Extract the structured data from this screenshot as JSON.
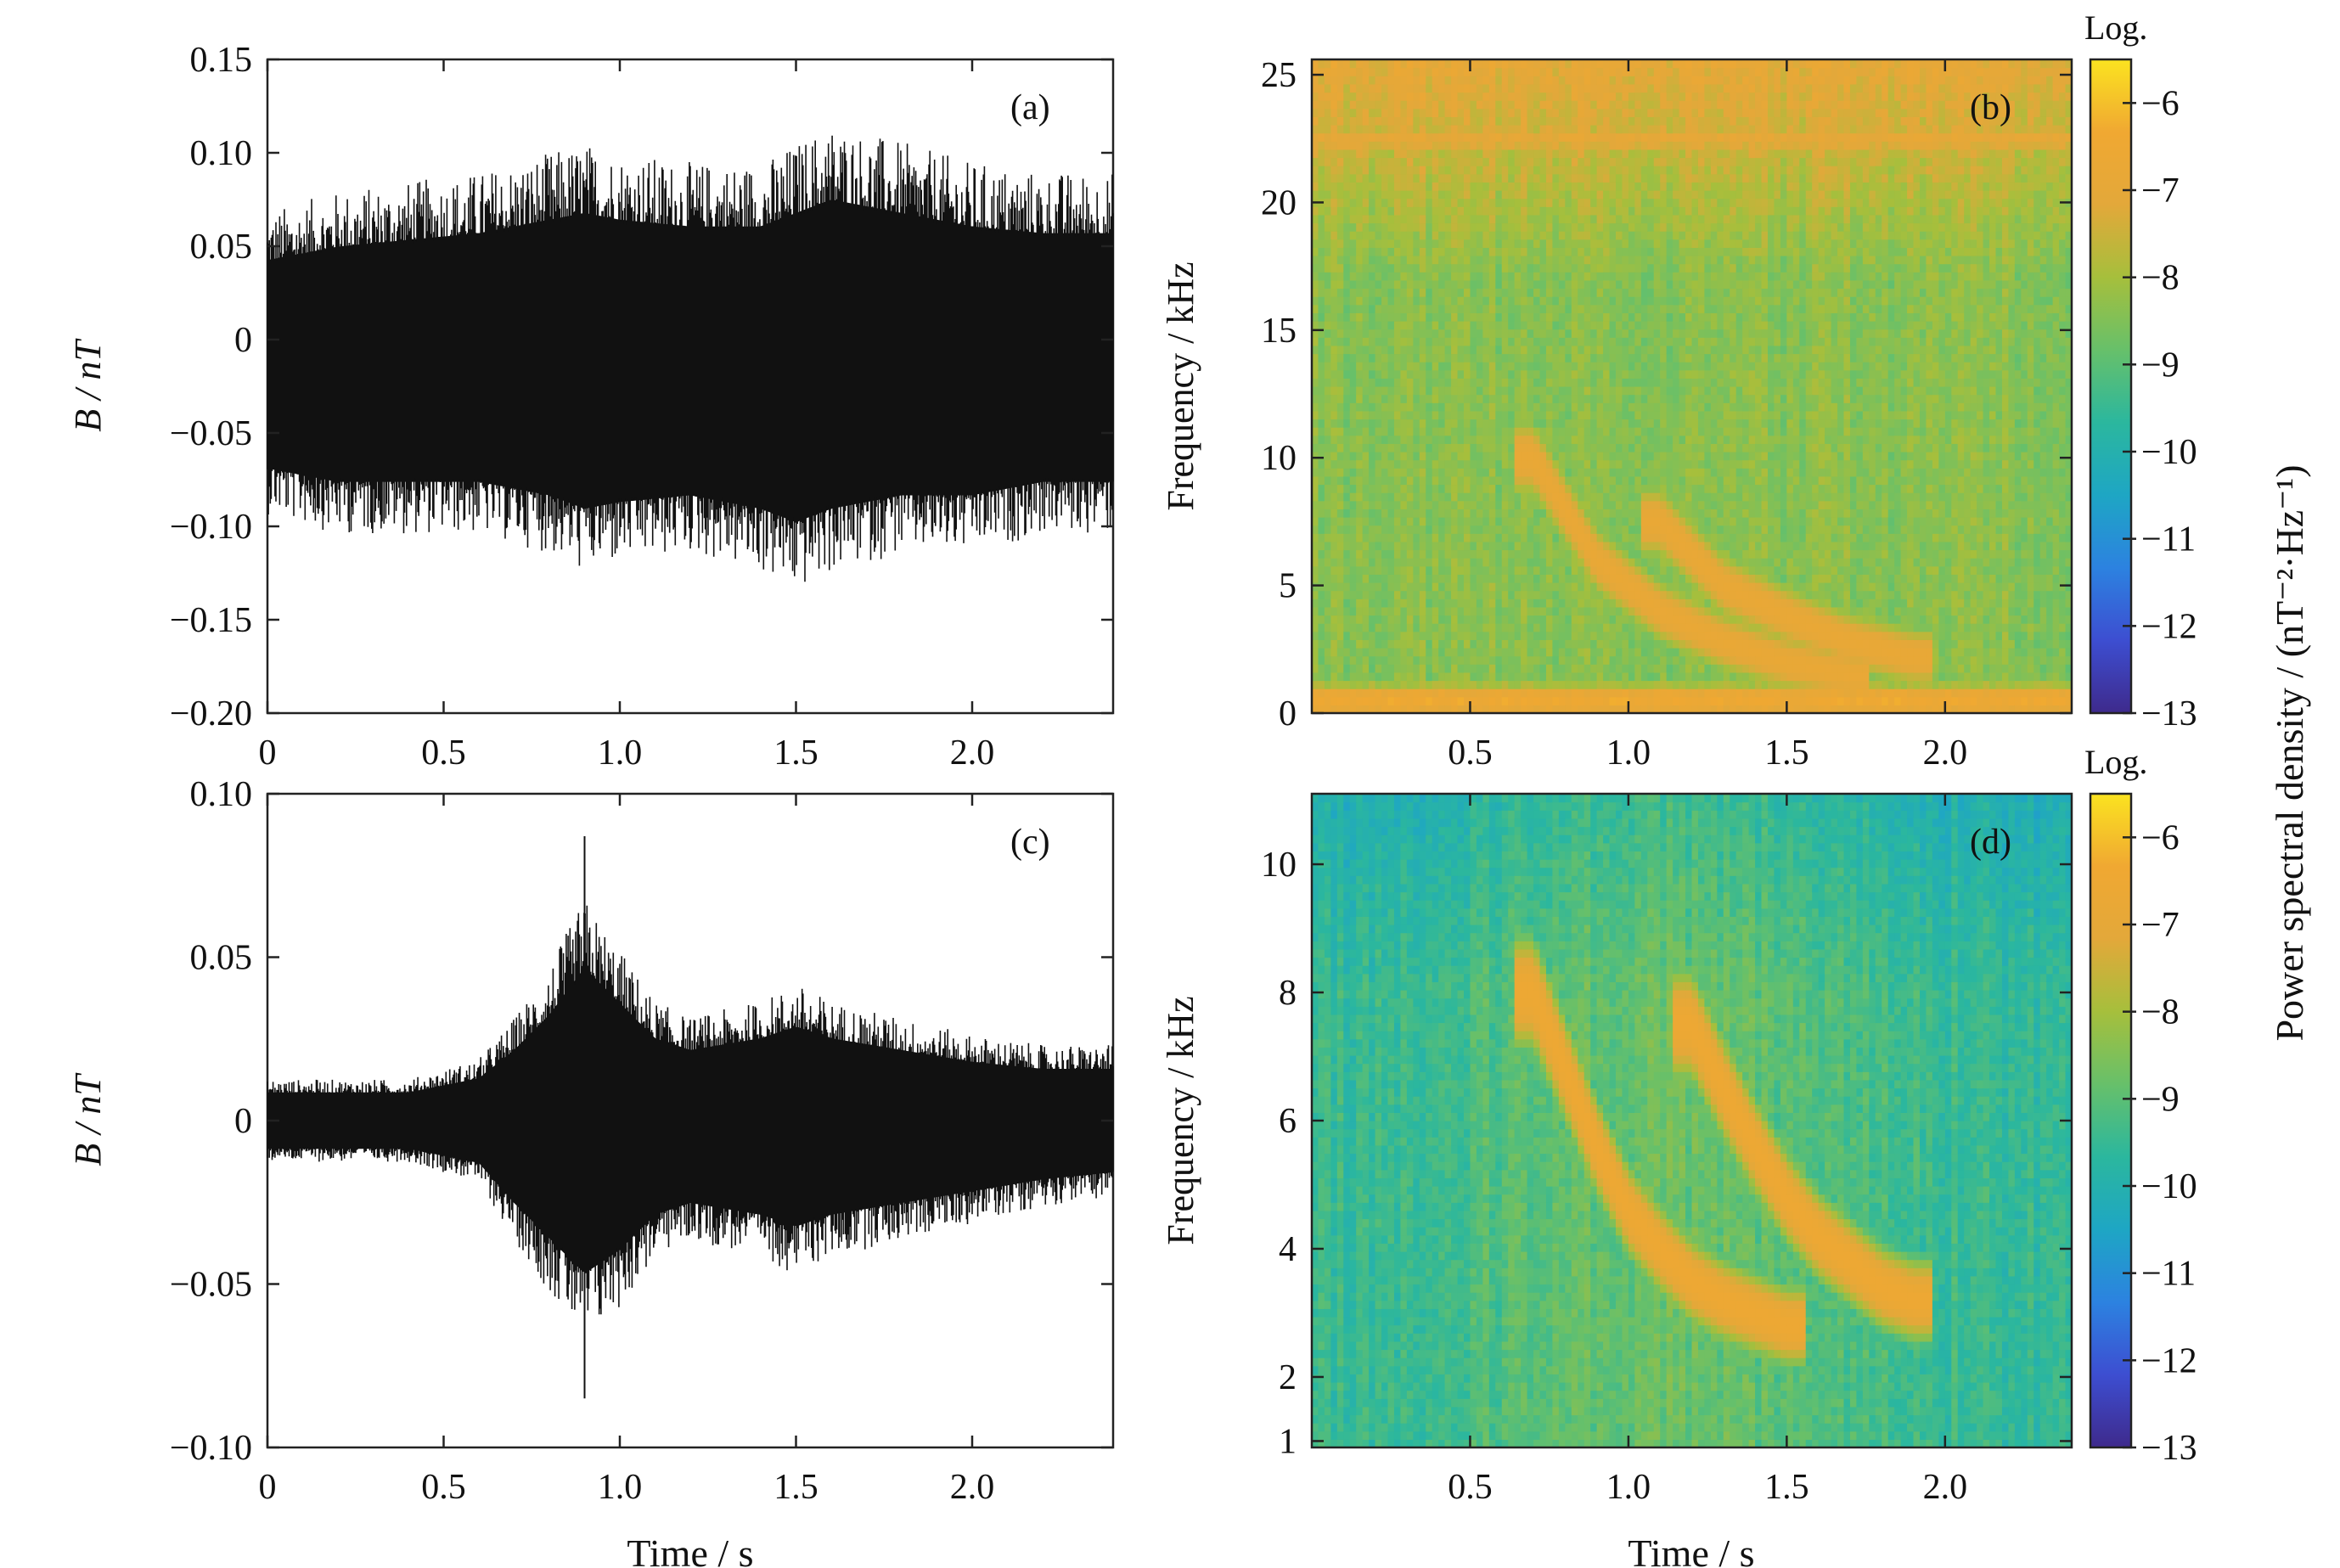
{
  "figure": {
    "colorbar_label": "Power spectral density / (nT⁻²·Hz⁻¹)"
  },
  "colors": {
    "waveform": "#111111",
    "colormap": [
      "#3e2a8c",
      "#3d4ed1",
      "#2c82e0",
      "#1ea6c4",
      "#2bb79e",
      "#67c06a",
      "#a6bf3c",
      "#e3a83a",
      "#f0a832",
      "#fbe320"
    ]
  },
  "chart_data": [
    {
      "type": "line",
      "panel_label": "(a)",
      "xlabel": "Time / s",
      "ylabel": "B / nT",
      "xlim": [
        0,
        2.4
      ],
      "ylim": [
        -0.2,
        0.15
      ],
      "xticks": [
        "0",
        "0.5",
        "1.0",
        "1.5",
        "2.0"
      ],
      "yticks": [
        "0.15",
        "0.10",
        "0.05",
        "0",
        "−0.05",
        "−0.10",
        "−0.15",
        "−0.20"
      ],
      "series": [
        {
          "x": [
            0,
            0.2,
            0.4,
            0.6,
            0.8,
            0.9,
            1.0,
            1.2,
            1.4,
            1.5,
            1.6,
            1.8,
            2.0,
            2.2,
            2.4
          ],
          "upper_envelope": [
            0.065,
            0.075,
            0.08,
            0.085,
            0.095,
            0.1,
            0.095,
            0.09,
            0.09,
            0.1,
            0.11,
            0.1,
            0.09,
            0.085,
            0.085
          ],
          "lower_envelope": [
            -0.09,
            -0.1,
            -0.1,
            -0.1,
            -0.11,
            -0.12,
            -0.115,
            -0.11,
            -0.12,
            -0.13,
            -0.12,
            -0.11,
            -0.11,
            -0.1,
            -0.1
          ],
          "center": -0.015
        }
      ]
    },
    {
      "type": "heatmap",
      "panel_label": "(b)",
      "xlabel": "",
      "ylabel": "Frequency / kHz",
      "xlim": [
        0,
        2.4
      ],
      "ylim": [
        0,
        25.6
      ],
      "xticks": [
        "0.5",
        "1.0",
        "1.5",
        "2.0"
      ],
      "yticks": [
        "25",
        "20",
        "15",
        "10",
        "5",
        "0"
      ],
      "colorbar": {
        "title": "Log.",
        "range": [
          -13,
          -5.5
        ],
        "ticks": [
          "−6",
          "−7",
          "−8",
          "−9",
          "−10",
          "−11",
          "−12",
          "−13"
        ]
      },
      "features": [
        {
          "name": "whistler trace 1",
          "t": [
            0.7,
            0.9,
            1.1,
            1.3,
            1.5,
            1.7
          ],
          "f_khz": [
            10.0,
            6.0,
            4.0,
            2.8,
            2.0,
            1.5
          ],
          "level": -6.8
        },
        {
          "name": "whistler trace 2",
          "t": [
            1.1,
            1.3,
            1.5,
            1.7,
            1.9
          ],
          "f_khz": [
            7.5,
            5.0,
            3.8,
            2.8,
            2.2
          ],
          "level": -6.8
        },
        {
          "name": "low frequency band",
          "t": [
            0,
            2.4
          ],
          "f_khz": [
            0.5,
            0.5
          ],
          "level": -6.5
        },
        {
          "name": "high frequency band",
          "t": [
            0,
            2.4
          ],
          "f_khz": [
            22.5,
            22.5
          ],
          "level": -7.0
        }
      ]
    },
    {
      "type": "line",
      "panel_label": "(c)",
      "xlabel": "Time / s",
      "ylabel": "B / nT",
      "xlim": [
        0,
        2.4
      ],
      "ylim": [
        -0.1,
        0.1
      ],
      "xticks": [
        "0",
        "0.5",
        "1.0",
        "1.5",
        "2.0"
      ],
      "yticks": [
        "0.10",
        "0.05",
        "0",
        "−0.05",
        "−0.10"
      ],
      "series": [
        {
          "x": [
            0,
            0.2,
            0.4,
            0.6,
            0.7,
            0.8,
            0.9,
            1.0,
            1.1,
            1.2,
            1.4,
            1.5,
            1.6,
            1.8,
            2.0,
            2.2,
            2.4
          ],
          "upper_envelope": [
            0.012,
            0.012,
            0.012,
            0.018,
            0.03,
            0.045,
            0.065,
            0.05,
            0.035,
            0.03,
            0.035,
            0.04,
            0.035,
            0.03,
            0.025,
            0.022,
            0.022
          ],
          "lower_envelope": [
            -0.012,
            -0.012,
            -0.012,
            -0.018,
            -0.035,
            -0.05,
            -0.065,
            -0.055,
            -0.04,
            -0.035,
            -0.04,
            -0.045,
            -0.04,
            -0.035,
            -0.03,
            -0.025,
            -0.022
          ],
          "center": 0,
          "spikes": [
            {
              "x": 0.9,
              "y": 0.087
            },
            {
              "x": 0.9,
              "y": -0.085
            }
          ]
        }
      ]
    },
    {
      "type": "heatmap",
      "panel_label": "(d)",
      "xlabel": "Time / s",
      "ylabel": "Frequency / kHz",
      "xlim": [
        0,
        2.4
      ],
      "ylim": [
        0.9,
        11.1
      ],
      "xticks": [
        "0.5",
        "1.0",
        "1.5",
        "2.0"
      ],
      "yticks": [
        "10",
        "8",
        "6",
        "4",
        "2",
        "1"
      ],
      "colorbar": {
        "title": "Log.",
        "range": [
          -13,
          -5.5
        ],
        "ticks": [
          "−6",
          "−7",
          "−8",
          "−9",
          "−10",
          "−11",
          "−12",
          "−13"
        ]
      },
      "features": [
        {
          "name": "whistler trace 1",
          "t": [
            0.7,
            0.8,
            0.9,
            1.0,
            1.1,
            1.2,
            1.3,
            1.4,
            1.5
          ],
          "f_khz": [
            8.0,
            6.8,
            5.6,
            4.6,
            4.0,
            3.5,
            3.2,
            3.0,
            2.8
          ],
          "level": -6.5
        },
        {
          "name": "whistler trace 2",
          "t": [
            1.2,
            1.3,
            1.4,
            1.5,
            1.6,
            1.7,
            1.8,
            1.9
          ],
          "f_khz": [
            7.5,
            6.5,
            5.6,
            4.8,
            4.2,
            3.8,
            3.4,
            3.2
          ],
          "level": -6.5
        },
        {
          "name": "low frequency band",
          "t": [
            0,
            2.4
          ],
          "f_khz": [
            1.05,
            1.05
          ],
          "level": -10.5
        }
      ]
    }
  ]
}
